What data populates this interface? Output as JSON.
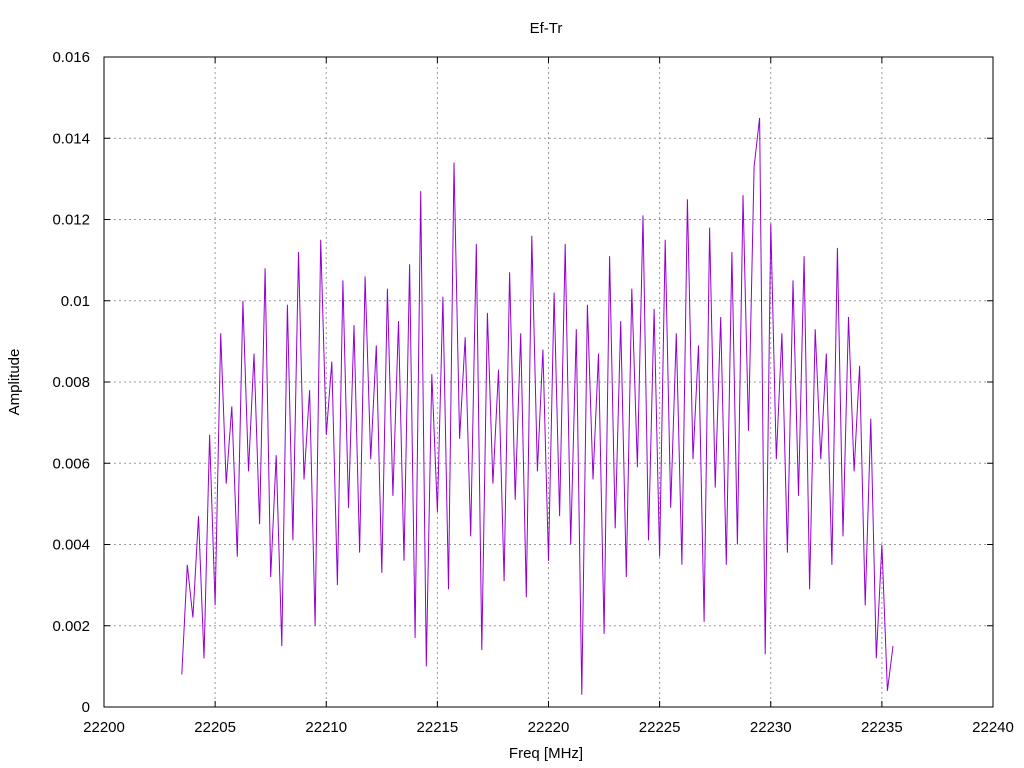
{
  "chart_data": {
    "type": "line",
    "title": "Ef-Tr",
    "xlabel": "Freq [MHz]",
    "ylabel": "Amplitude",
    "xlim": [
      22200,
      22240
    ],
    "ylim": [
      0,
      0.016
    ],
    "xticks": [
      22200,
      22205,
      22210,
      22215,
      22220,
      22225,
      22230,
      22235,
      22240
    ],
    "yticks": [
      0,
      0.002,
      0.004,
      0.006,
      0.008,
      0.01,
      0.012,
      0.014,
      0.016
    ],
    "ytick_labels": [
      "0",
      "0.002",
      "0.004",
      "0.006",
      "0.008",
      "0.01",
      "0.012",
      "0.014",
      "0.016"
    ],
    "grid": true,
    "series": [
      {
        "color": "#9400d3",
        "x": [
          22203.5,
          22203.75,
          22204.0,
          22204.25,
          22204.5,
          22204.75,
          22205.0,
          22205.25,
          22205.5,
          22205.75,
          22206.0,
          22206.25,
          22206.5,
          22206.75,
          22207.0,
          22207.25,
          22207.5,
          22207.75,
          22208.0,
          22208.25,
          22208.5,
          22208.75,
          22209.0,
          22209.25,
          22209.5,
          22209.75,
          22210.0,
          22210.25,
          22210.5,
          22210.75,
          22211.0,
          22211.25,
          22211.5,
          22211.75,
          22212.0,
          22212.25,
          22212.5,
          22212.75,
          22213.0,
          22213.25,
          22213.5,
          22213.75,
          22214.0,
          22214.25,
          22214.5,
          22214.75,
          22215.0,
          22215.25,
          22215.5,
          22215.75,
          22216.0,
          22216.25,
          22216.5,
          22216.75,
          22217.0,
          22217.25,
          22217.5,
          22217.75,
          22218.0,
          22218.25,
          22218.5,
          22218.75,
          22219.0,
          22219.25,
          22219.5,
          22219.75,
          22220.0,
          22220.25,
          22220.5,
          22220.75,
          22221.0,
          22221.25,
          22221.5,
          22221.75,
          22222.0,
          22222.25,
          22222.5,
          22222.75,
          22223.0,
          22223.25,
          22223.5,
          22223.75,
          22224.0,
          22224.25,
          22224.5,
          22224.75,
          22225.0,
          22225.25,
          22225.5,
          22225.75,
          22226.0,
          22226.25,
          22226.5,
          22226.75,
          22227.0,
          22227.25,
          22227.5,
          22227.75,
          22228.0,
          22228.25,
          22228.5,
          22228.75,
          22229.0,
          22229.25,
          22229.5,
          22229.75,
          22230.0,
          22230.25,
          22230.5,
          22230.75,
          22231.0,
          22231.25,
          22231.5,
          22231.75,
          22232.0,
          22232.25,
          22232.5,
          22232.75,
          22233.0,
          22233.25,
          22233.5,
          22233.75,
          22234.0,
          22234.25,
          22234.5,
          22234.75,
          22235.0,
          22235.25,
          22235.5
        ],
        "y": [
          0.0008,
          0.0035,
          0.0022,
          0.0047,
          0.0012,
          0.0067,
          0.0025,
          0.0092,
          0.0055,
          0.0074,
          0.0037,
          0.01,
          0.0058,
          0.0087,
          0.0045,
          0.0108,
          0.0032,
          0.0062,
          0.0015,
          0.0099,
          0.0041,
          0.0112,
          0.0056,
          0.0078,
          0.002,
          0.0115,
          0.0067,
          0.0085,
          0.003,
          0.0105,
          0.0049,
          0.0094,
          0.0038,
          0.0106,
          0.0061,
          0.0089,
          0.0033,
          0.0103,
          0.0052,
          0.0095,
          0.0036,
          0.0109,
          0.0017,
          0.0127,
          0.001,
          0.0082,
          0.0048,
          0.0101,
          0.0029,
          0.0134,
          0.0066,
          0.0091,
          0.0042,
          0.0114,
          0.0014,
          0.0097,
          0.0055,
          0.0083,
          0.0031,
          0.0107,
          0.0051,
          0.0092,
          0.0027,
          0.0116,
          0.0058,
          0.0088,
          0.0036,
          0.0102,
          0.0047,
          0.0114,
          0.004,
          0.0093,
          0.0003,
          0.0099,
          0.0056,
          0.0087,
          0.0018,
          0.0111,
          0.0044,
          0.0095,
          0.0032,
          0.0103,
          0.0059,
          0.0121,
          0.0041,
          0.0098,
          0.0037,
          0.0115,
          0.0049,
          0.0092,
          0.0035,
          0.0125,
          0.0061,
          0.0089,
          0.0021,
          0.0118,
          0.0054,
          0.0096,
          0.0035,
          0.0112,
          0.004,
          0.0126,
          0.0068,
          0.0133,
          0.0145,
          0.0013,
          0.0119,
          0.0061,
          0.0092,
          0.0038,
          0.0105,
          0.0052,
          0.0111,
          0.0029,
          0.0093,
          0.0061,
          0.0087,
          0.0035,
          0.0113,
          0.0042,
          0.0096,
          0.0058,
          0.0084,
          0.0025,
          0.0071,
          0.0012,
          0.004,
          0.0004,
          0.0015
        ]
      }
    ]
  }
}
